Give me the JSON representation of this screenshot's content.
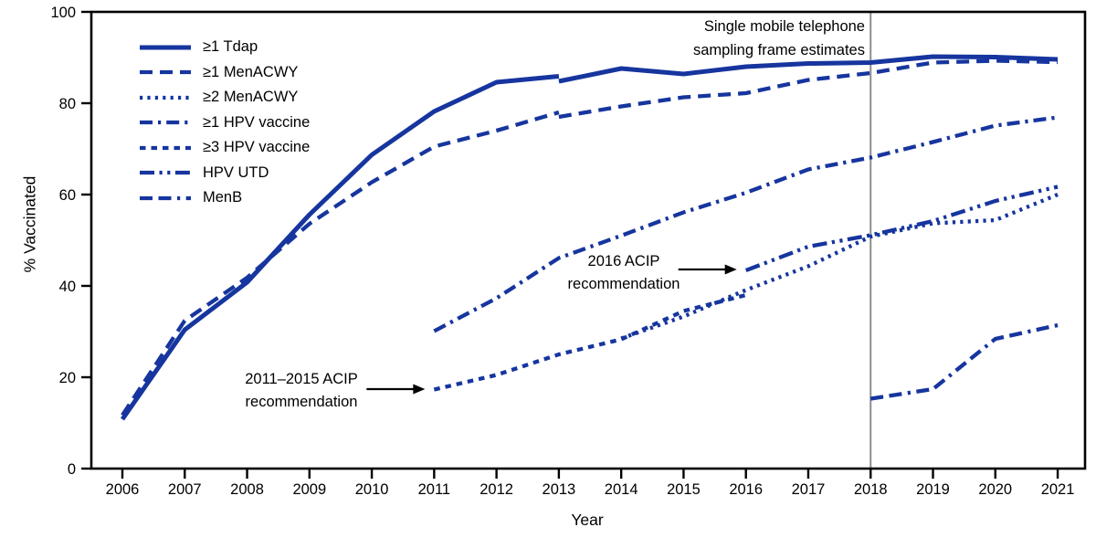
{
  "chart_data": {
    "type": "line",
    "title": "",
    "xlabel": "Year",
    "ylabel": "% Vaccinated",
    "xlim": [
      2006,
      2021
    ],
    "ylim": [
      0,
      100
    ],
    "grid": false,
    "legend_position": "top-left",
    "line_color": "#16359e",
    "axis_color": "#000000",
    "x_ticks": [
      2006,
      2007,
      2008,
      2009,
      2010,
      2011,
      2012,
      2013,
      2014,
      2015,
      2016,
      2017,
      2018,
      2019,
      2020,
      2021
    ],
    "y_ticks": [
      0,
      20,
      40,
      60,
      80,
      100
    ],
    "reference_line": {
      "x": 2018,
      "color": "#8c8c8c"
    },
    "series": [
      {
        "id": "tdap",
        "name": "≥1 Tdap",
        "style": "solid",
        "segments": [
          {
            "years": [
              2006,
              2007,
              2008,
              2009,
              2010,
              2011,
              2012,
              2013
            ],
            "values": [
              10.8,
              30.4,
              40.8,
              55.6,
              68.7,
              78.2,
              84.6,
              85.9
            ]
          },
          {
            "years": [
              2013,
              2014,
              2015,
              2016,
              2017,
              2018,
              2019,
              2020,
              2021
            ],
            "values": [
              84.8,
              87.6,
              86.4,
              88.0,
              88.7,
              88.9,
              90.2,
              90.1,
              89.6
            ]
          }
        ]
      },
      {
        "id": "menacwy-1",
        "name": "≥1 MenACWY",
        "style": "long-dash",
        "segments": [
          {
            "years": [
              2006,
              2007,
              2008,
              2009,
              2010,
              2011,
              2012,
              2013
            ],
            "values": [
              11.7,
              32.4,
              41.8,
              53.6,
              62.7,
              70.5,
              74.0,
              78.0
            ]
          },
          {
            "years": [
              2013,
              2014,
              2015,
              2016,
              2017,
              2018,
              2019,
              2020,
              2021
            ],
            "values": [
              77.0,
              79.3,
              81.3,
              82.2,
              85.1,
              86.6,
              88.9,
              89.3,
              89.0
            ]
          }
        ]
      },
      {
        "id": "menacwy-2",
        "name": "≥2 MenACWY",
        "style": "dot",
        "segments": [
          {
            "years": [
              2014,
              2015,
              2016,
              2017,
              2018,
              2019,
              2020,
              2021
            ],
            "values": [
              28.5,
              33.3,
              39.1,
              44.3,
              50.8,
              53.7,
              54.4,
              60.0
            ]
          }
        ]
      },
      {
        "id": "hpv-1",
        "name": "≥1 HPV vaccine",
        "style": "dash-dot",
        "segments": [
          {
            "years": [
              2011,
              2012,
              2013,
              2014,
              2015,
              2016,
              2017,
              2018,
              2019,
              2020,
              2021
            ],
            "values": [
              30.1,
              37.3,
              46.1,
              51.0,
              56.1,
              60.4,
              65.5,
              68.1,
              71.5,
              75.1,
              76.9
            ]
          }
        ]
      },
      {
        "id": "hpv-3",
        "name": "≥3 HPV vaccine",
        "style": "short-dash",
        "segments": [
          {
            "years": [
              2011,
              2012,
              2013,
              2014,
              2015,
              2016
            ],
            "values": [
              17.3,
              20.5,
              25.0,
              28.3,
              34.5,
              38.0
            ]
          }
        ]
      },
      {
        "id": "hpv-utd",
        "name": "HPV UTD",
        "style": "dash-dot-dot",
        "segments": [
          {
            "years": [
              2016,
              2017,
              2018,
              2019,
              2020,
              2021
            ],
            "values": [
              43.4,
              48.6,
              51.1,
              54.2,
              58.6,
              61.7
            ]
          }
        ]
      },
      {
        "id": "menb",
        "name": "MenB",
        "style": "dash-dash-dot",
        "segments": [
          {
            "years": [
              2018,
              2019,
              2020,
              2021
            ],
            "values": [
              15.3,
              17.4,
              28.4,
              31.4
            ]
          }
        ]
      }
    ],
    "arrows": [
      {
        "target_year": 2011,
        "target_value": 17.4,
        "length": 64
      },
      {
        "target_year": 2016,
        "target_value": 43.6,
        "length": 64
      }
    ],
    "annotations": {
      "single_frame": {
        "text1": "Single mobile telephone",
        "text2": "sampling frame estimates"
      },
      "acip_2011_2015": {
        "text1": "2011–2015 ACIP",
        "text2": "recommendation"
      },
      "acip_2016": {
        "text1": "2016 ACIP",
        "text2": "recommendation"
      }
    }
  }
}
